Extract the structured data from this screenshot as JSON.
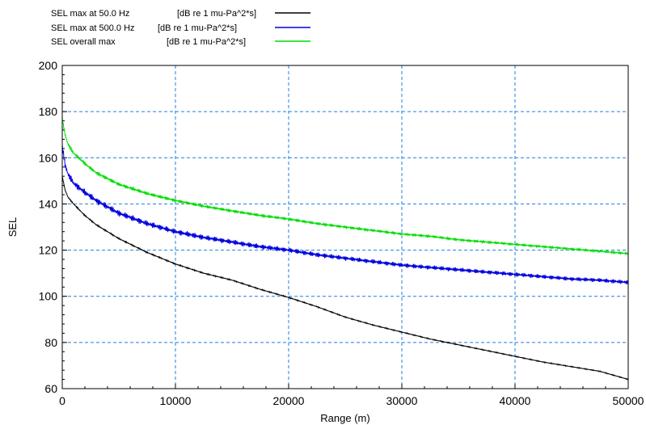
{
  "chart_data": {
    "type": "line",
    "xlabel": "Range (m)",
    "ylabel": "SEL",
    "xlim": [
      0,
      50000
    ],
    "ylim": [
      60,
      200
    ],
    "x_ticks": [
      0,
      10000,
      20000,
      30000,
      40000,
      50000
    ],
    "y_ticks": [
      60,
      80,
      100,
      120,
      140,
      160,
      180,
      200
    ],
    "grid": true,
    "legend_position": "top-left, above plot",
    "series": [
      {
        "name": "SEL max at 50.0 Hz",
        "unit": "[dB re 1 mu-Pa^2*s]",
        "color": "#000000",
        "x": [
          0,
          250,
          500,
          1000,
          2000,
          3000,
          5000,
          7500,
          10000,
          12500,
          15000,
          17500,
          20000,
          22500,
          25000,
          27500,
          30000,
          32500,
          35000,
          37500,
          40000,
          42500,
          45000,
          47500,
          50000
        ],
        "y": [
          152,
          146,
          143,
          140,
          135,
          131,
          125,
          119,
          114,
          110,
          107,
          103,
          99.5,
          95.5,
          91,
          87.5,
          84.5,
          81.5,
          79,
          76.5,
          74,
          71.5,
          69.5,
          67.5,
          64
        ]
      },
      {
        "name": "SEL max at 500.0 Hz",
        "unit": "[dB re 1 mu-Pa^2*s]",
        "color": "#0000dd",
        "x": [
          0,
          250,
          500,
          1000,
          2000,
          3000,
          5000,
          7500,
          10000,
          12500,
          15000,
          17500,
          20000,
          22500,
          25000,
          27500,
          30000,
          32500,
          35000,
          37500,
          40000,
          42500,
          45000,
          47500,
          50000
        ],
        "y": [
          165,
          157,
          153,
          149,
          145,
          141.5,
          136,
          131.5,
          128,
          125.5,
          123.5,
          121.5,
          120,
          118,
          116.5,
          115,
          113.5,
          112.5,
          111.5,
          110.5,
          109.5,
          108.5,
          107.5,
          107,
          106
        ]
      },
      {
        "name": "SEL overall max",
        "unit": "[dB re 1 mu-Pa^2*s]",
        "color": "#00dd00",
        "x": [
          0,
          250,
          500,
          1000,
          2000,
          3000,
          5000,
          7500,
          10000,
          12500,
          15000,
          17500,
          20000,
          22500,
          25000,
          27500,
          30000,
          32500,
          35000,
          37500,
          40000,
          42500,
          45000,
          47500,
          50000
        ],
        "y": [
          177,
          170,
          166,
          162,
          157.5,
          153.5,
          148.5,
          144.5,
          141.5,
          139,
          137,
          135,
          133.5,
          131.5,
          130,
          128.5,
          127,
          126,
          124.5,
          123.5,
          122.5,
          121.5,
          120.5,
          119.5,
          118.5
        ]
      }
    ]
  }
}
